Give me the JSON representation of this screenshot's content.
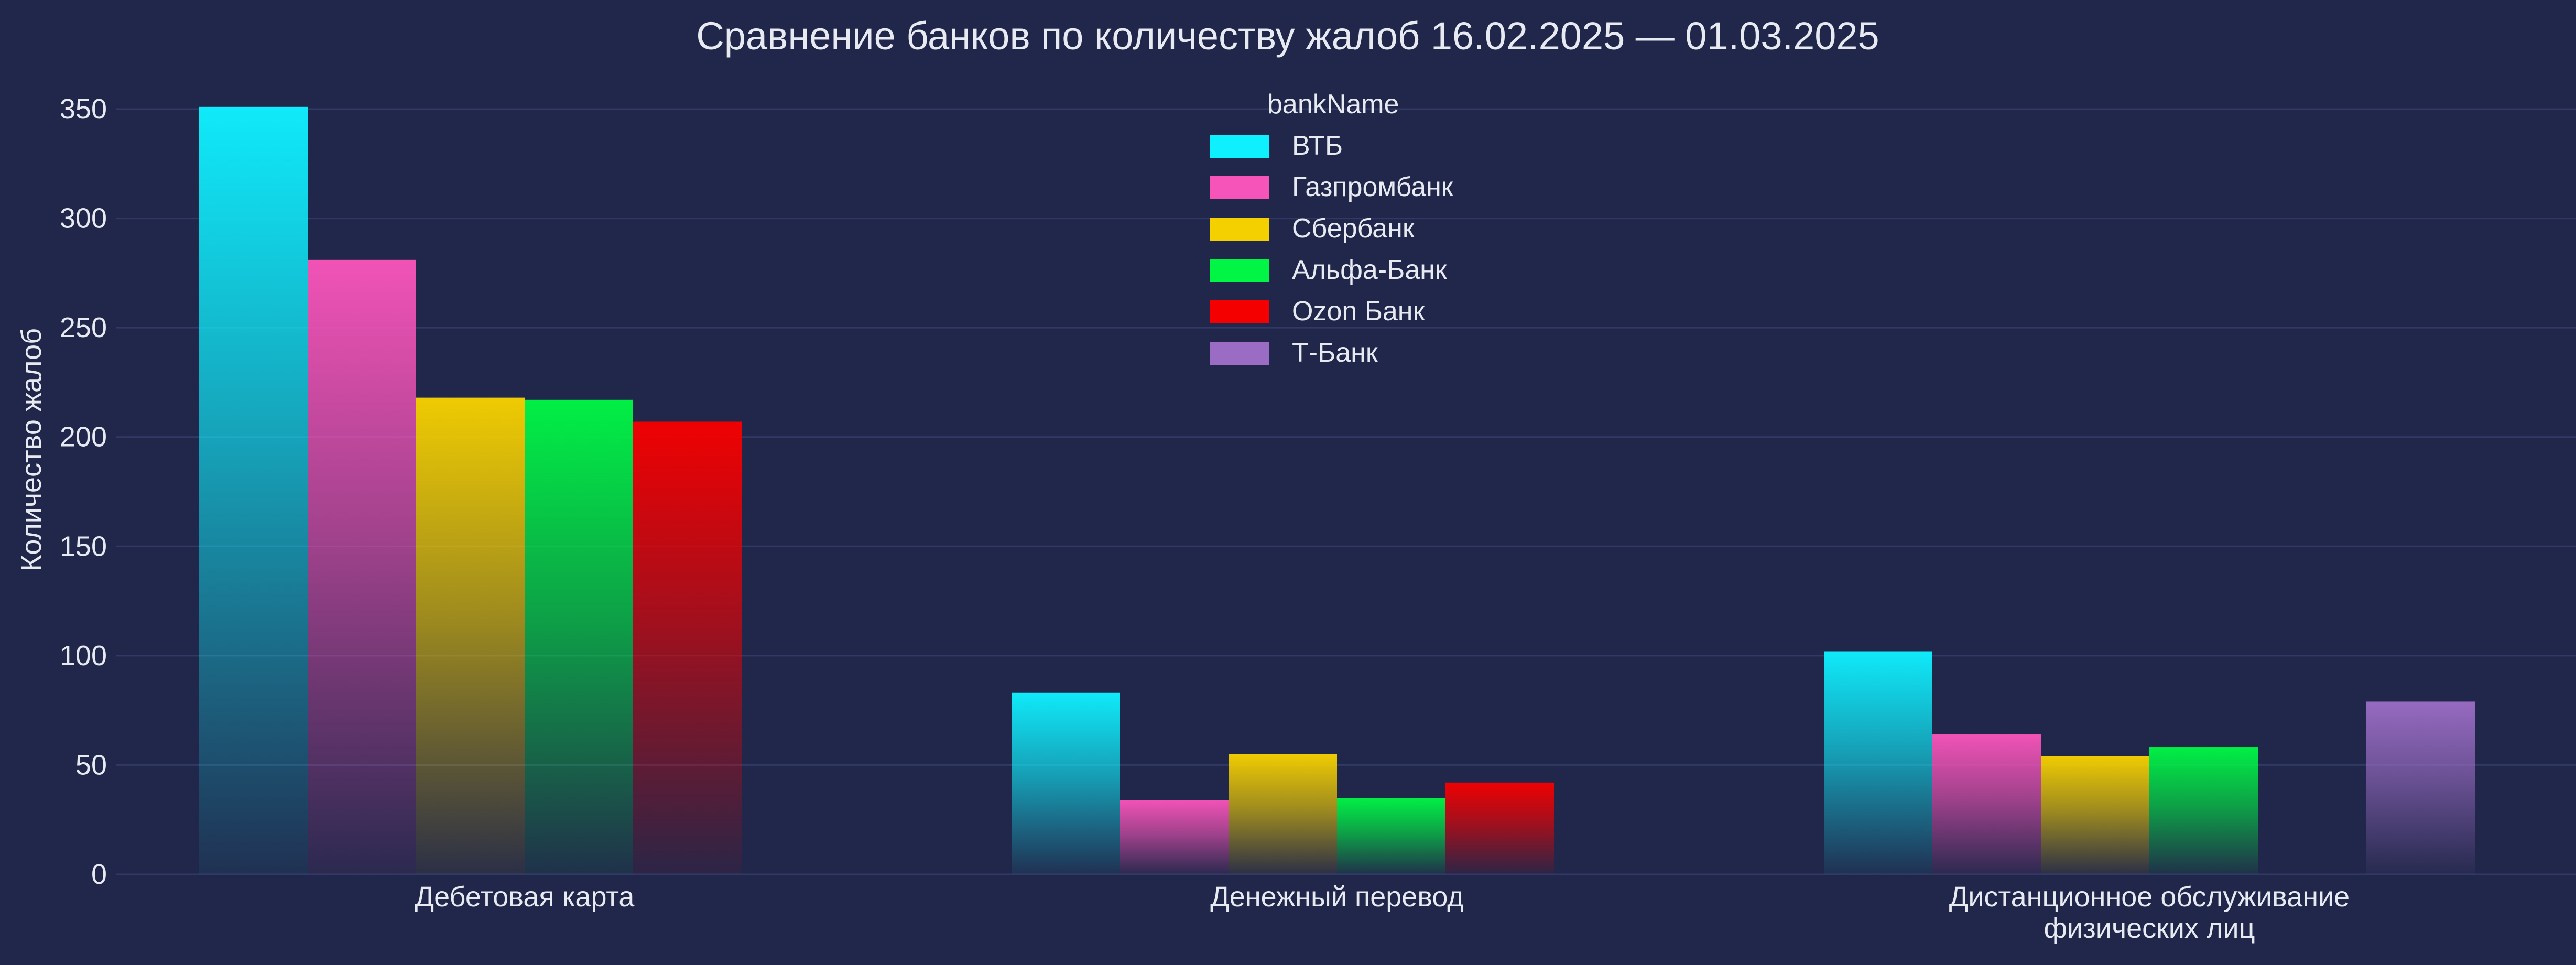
{
  "chart_data": {
    "type": "bar",
    "title": "Сравнение банков по количеству жалоб 16.02.2025 — 01.03.2025",
    "xlabel": "",
    "ylabel": "Количество жалоб",
    "ylim": [
      0,
      360
    ],
    "yticks": [
      "0",
      "50",
      "100",
      "150",
      "200",
      "250",
      "300",
      "350"
    ],
    "grid": true,
    "legend_title": "bankName",
    "legend_position": "top-center",
    "categories": [
      {
        "label_lines": [
          "Дебетовая карта"
        ]
      },
      {
        "label_lines": [
          "Денежный перевод"
        ]
      },
      {
        "label_lines": [
          "Дистанционное обслуживание",
          "физических лиц"
        ]
      }
    ],
    "series": [
      {
        "name": "ВТБ",
        "color": "#0ff0ff",
        "values": [
          351,
          83,
          102
        ]
      },
      {
        "name": "Газпромбанк",
        "color": "#f754b9",
        "values": [
          281,
          34,
          64
        ]
      },
      {
        "name": "Сбербанк",
        "color": "#f5d000",
        "values": [
          218,
          55,
          54
        ]
      },
      {
        "name": "Альфа-Банк",
        "color": "#00f545",
        "values": [
          217,
          35,
          58
        ]
      },
      {
        "name": "Ozon Банк",
        "color": "#f50000",
        "values": [
          207,
          42,
          null
        ]
      },
      {
        "name": "Т-Банк",
        "color": "#9a6cc4",
        "values": [
          null,
          null,
          79
        ]
      }
    ]
  }
}
